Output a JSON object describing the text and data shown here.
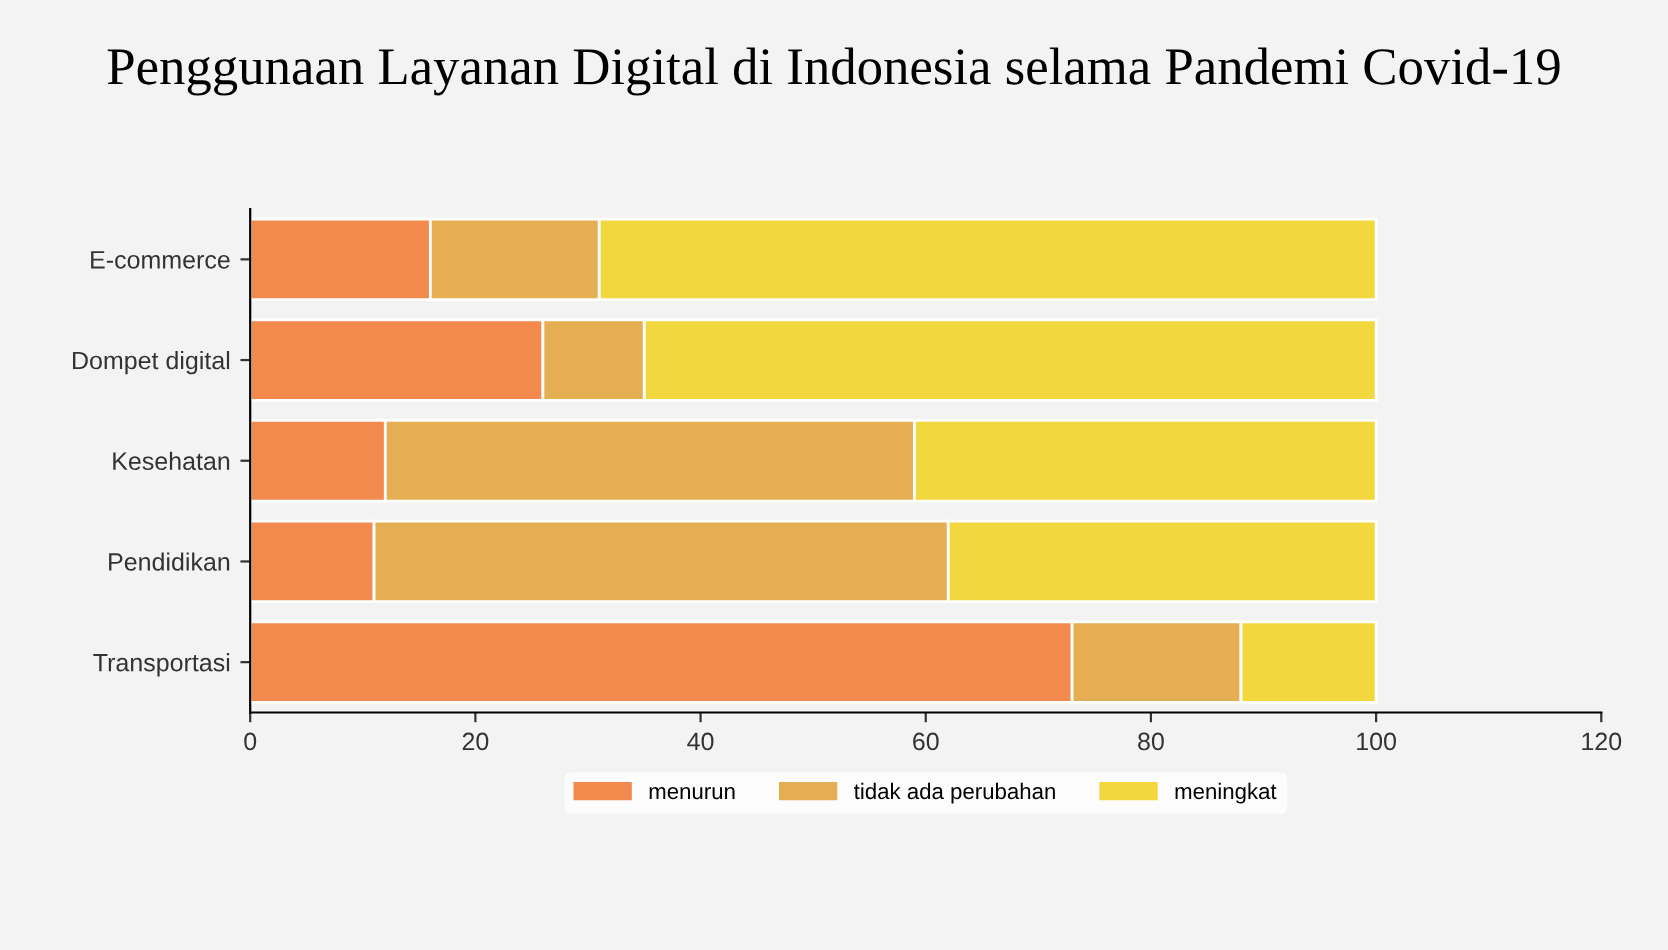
{
  "chart_data": {
    "type": "bar",
    "orientation": "horizontal",
    "stacked": true,
    "title": "Penggunaan Layanan Digital di Indonesia selama Pandemi Covid-19",
    "categories": [
      "E-commerce",
      "Dompet digital",
      "Kesehatan",
      "Pendidikan",
      "Transportasi"
    ],
    "series": [
      {
        "name": "menurun",
        "color": "#f28a4e",
        "values": [
          16,
          26,
          12,
          11,
          73
        ]
      },
      {
        "name": "tidak ada perubahan",
        "color": "#e5ae52",
        "values": [
          15,
          9,
          47,
          51,
          15
        ]
      },
      {
        "name": "meningkat",
        "color": "#f2d83e",
        "values": [
          69,
          65,
          41,
          38,
          12
        ]
      }
    ],
    "xlim": [
      0,
      120
    ],
    "xticks": [
      0,
      20,
      40,
      60,
      80,
      100,
      120
    ],
    "grid": false,
    "legend": "bottom"
  }
}
